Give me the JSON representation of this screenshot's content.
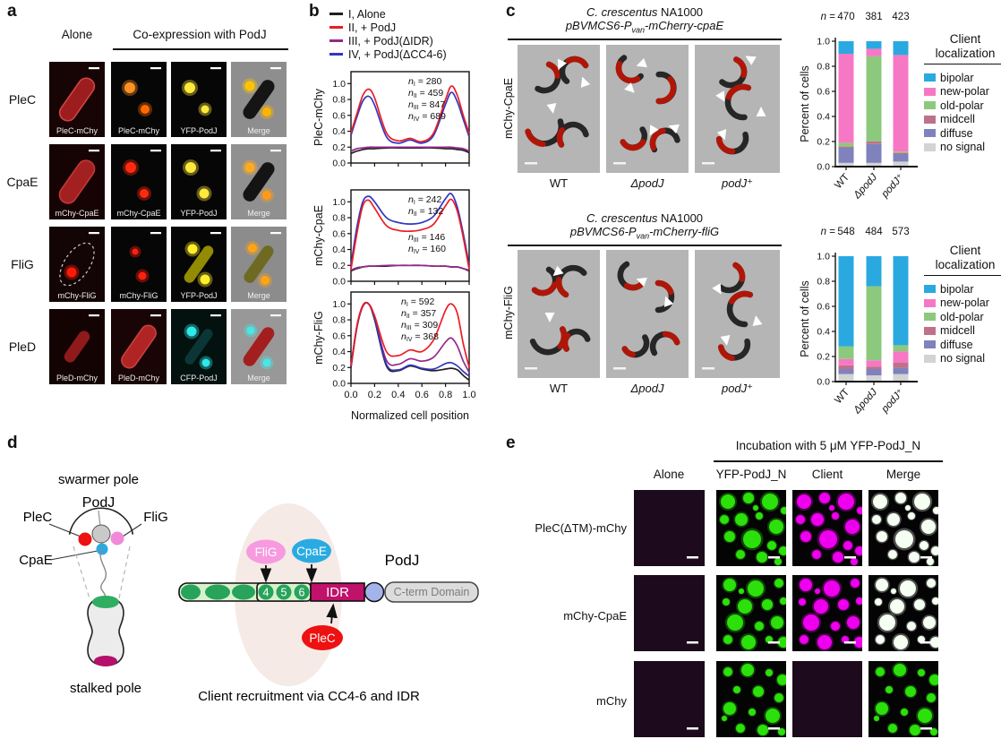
{
  "figure": {
    "panel_a": {
      "label": "a",
      "header_alone": "Alone",
      "header_coexpression": "Co-expression with PodJ",
      "rows": [
        {
          "name": "PleC",
          "image_labels": [
            "PleC-mChy",
            "PleC-mChy",
            "YFP-PodJ",
            "Merge"
          ]
        },
        {
          "name": "CpaE",
          "image_labels": [
            "mChy-CpaE",
            "mChy-CpaE",
            "YFP-PodJ",
            "Merge"
          ]
        },
        {
          "name": "FliG",
          "image_labels": [
            "mChy-FliG",
            "mChy-FliG",
            "YFP-PodJ",
            "Merge"
          ]
        },
        {
          "name": "PleD",
          "image_labels": [
            "PleD-mChy",
            "PleD-mChy",
            "CFP-PodJ",
            "Merge"
          ]
        }
      ]
    },
    "panel_b": {
      "label": "b",
      "legend": [
        {
          "label": "I, Alone",
          "color": "#231f20"
        },
        {
          "label": "II, + PodJ",
          "color": "#ed1c24"
        },
        {
          "label": "III, + PodJ(ΔIDR)",
          "color": "#94288e"
        },
        {
          "label": "IV, + PodJ(ΔCC4-6)",
          "color": "#3237bf"
        }
      ],
      "xlabel": "Normalized cell position"
    },
    "panel_c": {
      "label": "c",
      "strain_italic": "C. crescentus",
      "strain_normal": " NA1000",
      "blocks": [
        {
          "plasmid_prefix": "pBVMCS6-P",
          "plasmid_sub": "van",
          "plasmid_suffix": "-mCherry-cpaE",
          "row_label": "mChy-CpaE",
          "conditions": [
            "WT",
            "ΔpodJ",
            "podJ⁺"
          ]
        },
        {
          "plasmid_prefix": "pBVMCS6-P",
          "plasmid_sub": "van",
          "plasmid_suffix": "-mCherry-fliG",
          "row_label": "mChy-FliG",
          "conditions": [
            "WT",
            "ΔpodJ",
            "podJ⁺"
          ]
        }
      ],
      "ylabel": "Percent of cells",
      "legend_title_line1": "Client",
      "legend_title_line2": "localization",
      "legend": [
        {
          "label": "bipolar",
          "color": "#2aa9e0"
        },
        {
          "label": "new-polar",
          "color": "#f678c5"
        },
        {
          "label": "old-polar",
          "color": "#8dc97d"
        },
        {
          "label": "midcell",
          "color": "#bf7189"
        },
        {
          "label": "diffuse",
          "color": "#7f82bd"
        },
        {
          "label": "no signal",
          "color": "#d3d3d3"
        }
      ]
    },
    "panel_d": {
      "label": "d",
      "swarmer_pole": "swarmer pole",
      "stalked_pole": "stalked pole",
      "podj_cell": "PodJ",
      "plec_cell": "PleC",
      "flig_cell": "FliG",
      "cpae_cell": "CpaE",
      "flig_oval": "FliG",
      "cpae_oval": "CpaE",
      "plec_oval": "PleC",
      "domain_4": "4",
      "domain_5": "5",
      "domain_6": "6",
      "idr": "IDR",
      "podj_domain": "PodJ",
      "cterm": "C-term Domain",
      "caption": "Client recruitment via CC4-6 and IDR"
    },
    "panel_e": {
      "label": "e",
      "header": "Incubation with 5 μM YFP-PodJ_N",
      "columns": [
        "Alone",
        "YFP-PodJ_N",
        "Client",
        "Merge"
      ],
      "rows": [
        "PleC(ΔTM)-mChy",
        "mChy-CpaE",
        "mChy"
      ]
    }
  },
  "chart_data": [
    {
      "type": "line",
      "id": "b1",
      "ylabel": "PleC-mChy",
      "xlabel": "Normalized cell position",
      "xlim": [
        0,
        1
      ],
      "ylim": [
        0,
        1.15
      ],
      "xticks": [
        0,
        0.2,
        0.4,
        0.6,
        0.8,
        1.0
      ],
      "yticks": [
        0,
        0.2,
        0.4,
        0.6,
        0.8,
        1.0
      ],
      "x": [
        0,
        0.05,
        0.1,
        0.15,
        0.2,
        0.3,
        0.4,
        0.5,
        0.6,
        0.7,
        0.8,
        0.85,
        0.9,
        0.95,
        1
      ],
      "series": [
        {
          "name": "I, Alone",
          "sub": "I",
          "n": 280,
          "color": "#231f20",
          "values": [
            0.12,
            0.15,
            0.17,
            0.18,
            0.18,
            0.19,
            0.19,
            0.19,
            0.19,
            0.19,
            0.18,
            0.18,
            0.17,
            0.16,
            0.13
          ]
        },
        {
          "name": "II, + PodJ",
          "sub": "II",
          "n": 459,
          "color": "#ed1c24",
          "values": [
            0.38,
            0.62,
            0.85,
            0.93,
            0.82,
            0.38,
            0.28,
            0.31,
            0.27,
            0.38,
            0.8,
            0.97,
            0.85,
            0.6,
            0.37
          ]
        },
        {
          "name": "III, + PodJ(ΔIDR)",
          "sub": "III",
          "n": 847,
          "color": "#94288e",
          "values": [
            0.15,
            0.18,
            0.19,
            0.2,
            0.2,
            0.2,
            0.2,
            0.2,
            0.2,
            0.2,
            0.2,
            0.2,
            0.19,
            0.18,
            0.15
          ]
        },
        {
          "name": "IV, + PodJ(ΔCC4-6)",
          "sub": "IV",
          "n": 689,
          "color": "#3237bf",
          "values": [
            0.35,
            0.58,
            0.78,
            0.84,
            0.73,
            0.33,
            0.25,
            0.29,
            0.25,
            0.35,
            0.74,
            0.89,
            0.77,
            0.55,
            0.33
          ]
        }
      ]
    },
    {
      "type": "line",
      "id": "b2",
      "ylabel": "mChy-CpaE",
      "xlabel": "Normalized cell position",
      "xlim": [
        0,
        1
      ],
      "ylim": [
        0,
        1.15
      ],
      "xticks": [
        0,
        0.2,
        0.4,
        0.6,
        0.8,
        1.0
      ],
      "yticks": [
        0,
        0.2,
        0.4,
        0.6,
        0.8,
        1.0
      ],
      "x": [
        0,
        0.05,
        0.1,
        0.15,
        0.2,
        0.3,
        0.4,
        0.5,
        0.6,
        0.7,
        0.8,
        0.85,
        0.9,
        0.95,
        1
      ],
      "series": [
        {
          "name": "I, Alone",
          "sub": "I",
          "n": 242,
          "color": "#231f20",
          "values": [
            0.13,
            0.16,
            0.18,
            0.19,
            0.19,
            0.19,
            0.2,
            0.2,
            0.2,
            0.19,
            0.19,
            0.18,
            0.18,
            0.16,
            0.13
          ]
        },
        {
          "name": "II, + PodJ",
          "sub": "II",
          "n": 132,
          "color": "#ed1c24",
          "values": [
            0.15,
            0.6,
            0.95,
            1.02,
            0.92,
            0.7,
            0.64,
            0.63,
            0.65,
            0.72,
            0.95,
            1.03,
            0.88,
            0.55,
            0.15
          ]
        },
        {
          "name": "III, + PodJ(ΔIDR)",
          "sub": "III",
          "n": 146,
          "color": "#94288e",
          "values": [
            0.14,
            0.17,
            0.18,
            0.19,
            0.19,
            0.2,
            0.2,
            0.2,
            0.2,
            0.19,
            0.19,
            0.18,
            0.18,
            0.16,
            0.14
          ]
        },
        {
          "name": "IV, + PodJ(ΔCC4-6)",
          "sub": "IV",
          "n": 160,
          "color": "#3237bf",
          "values": [
            0.2,
            0.68,
            1.0,
            1.07,
            1.0,
            0.8,
            0.74,
            0.72,
            0.74,
            0.82,
            1.04,
            1.1,
            0.93,
            0.6,
            0.2
          ]
        }
      ]
    },
    {
      "type": "line",
      "id": "b3",
      "ylabel": "mChy-FliG",
      "xlabel": "Normalized cell position",
      "xlim": [
        0,
        1
      ],
      "ylim": [
        0,
        1.15
      ],
      "xticks": [
        0,
        0.2,
        0.4,
        0.6,
        0.8,
        1.0
      ],
      "yticks": [
        0,
        0.2,
        0.4,
        0.6,
        0.8,
        1.0
      ],
      "x": [
        0,
        0.05,
        0.1,
        0.15,
        0.2,
        0.3,
        0.4,
        0.5,
        0.6,
        0.7,
        0.8,
        0.85,
        0.9,
        0.95,
        1
      ],
      "series": [
        {
          "name": "I, Alone",
          "sub": "I",
          "n": 592,
          "color": "#231f20",
          "values": [
            0.2,
            0.7,
            0.97,
            1.0,
            0.8,
            0.22,
            0.16,
            0.22,
            0.18,
            0.16,
            0.18,
            0.19,
            0.17,
            0.1,
            0.04
          ]
        },
        {
          "name": "II, + PodJ",
          "sub": "II",
          "n": 357,
          "color": "#ed1c24",
          "values": [
            0.22,
            0.72,
            0.98,
            1.0,
            0.85,
            0.4,
            0.35,
            0.42,
            0.4,
            0.55,
            0.92,
            1.0,
            0.88,
            0.5,
            0.2
          ]
        },
        {
          "name": "III, + PodJ(ΔIDR)",
          "sub": "III",
          "n": 309,
          "color": "#94288e",
          "values": [
            0.21,
            0.71,
            0.97,
            1.0,
            0.82,
            0.29,
            0.24,
            0.31,
            0.28,
            0.33,
            0.52,
            0.57,
            0.47,
            0.28,
            0.14
          ]
        },
        {
          "name": "IV, + PodJ(ΔCC4-6)",
          "sub": "IV",
          "n": 368,
          "color": "#3237bf",
          "values": [
            0.21,
            0.72,
            0.98,
            1.0,
            0.82,
            0.24,
            0.17,
            0.23,
            0.19,
            0.18,
            0.25,
            0.26,
            0.22,
            0.15,
            0.09
          ]
        }
      ]
    },
    {
      "type": "stacked-bar",
      "id": "c1",
      "title": "pBVMCS6-Pvan-mCherry-cpaE in C. crescentus NA1000",
      "categories": [
        {
          "label": "WT",
          "italic": false
        },
        {
          "label": "ΔpodJ",
          "italic": true
        },
        {
          "label": "podJ⁺",
          "italic": true
        }
      ],
      "n": [
        470,
        381,
        423
      ],
      "ylabel": "Percent of cells",
      "ylim": [
        0,
        1
      ],
      "legend_position": "right",
      "stack_bottom_to_top": [
        "no signal",
        "diffuse",
        "midcell",
        "old-polar",
        "new-polar",
        "bipolar"
      ],
      "series": [
        {
          "name": "bipolar",
          "color": "#2aa9e0",
          "values": [
            0.1,
            0.06,
            0.11
          ]
        },
        {
          "name": "new-polar",
          "color": "#f678c5",
          "values": [
            0.71,
            0.06,
            0.77
          ]
        },
        {
          "name": "old-polar",
          "color": "#8dc97d",
          "values": [
            0.03,
            0.68,
            0.01
          ]
        },
        {
          "name": "midcell",
          "color": "#bf7189",
          "values": [
            0.01,
            0.02,
            0.01
          ]
        },
        {
          "name": "diffuse",
          "color": "#7f82bd",
          "values": [
            0.12,
            0.15,
            0.06
          ]
        },
        {
          "name": "no signal",
          "color": "#d3d3d3",
          "values": [
            0.03,
            0.03,
            0.04
          ]
        }
      ]
    },
    {
      "type": "stacked-bar",
      "id": "c2",
      "title": "pBVMCS6-Pvan-mCherry-fliG in C. crescentus NA1000",
      "categories": [
        {
          "label": "WT",
          "italic": false
        },
        {
          "label": "ΔpodJ",
          "italic": true
        },
        {
          "label": "podJ⁺",
          "italic": true
        }
      ],
      "n": [
        548,
        484,
        573
      ],
      "ylabel": "Percent of cells",
      "ylim": [
        0,
        1
      ],
      "legend_position": "right",
      "stack_bottom_to_top": [
        "no signal",
        "diffuse",
        "midcell",
        "new-polar",
        "old-polar",
        "bipolar"
      ],
      "series": [
        {
          "name": "bipolar",
          "color": "#2aa9e0",
          "values": [
            0.72,
            0.24,
            0.71
          ]
        },
        {
          "name": "new-polar",
          "color": "#f678c5",
          "values": [
            0.05,
            0.05,
            0.09
          ]
        },
        {
          "name": "old-polar",
          "color": "#8dc97d",
          "values": [
            0.1,
            0.59,
            0.05
          ]
        },
        {
          "name": "midcell",
          "color": "#bf7189",
          "values": [
            0.03,
            0.02,
            0.04
          ]
        },
        {
          "name": "diffuse",
          "color": "#7f82bd",
          "values": [
            0.04,
            0.05,
            0.05
          ]
        },
        {
          "name": "no signal",
          "color": "#d3d3d3",
          "values": [
            0.06,
            0.05,
            0.06
          ]
        }
      ]
    }
  ]
}
